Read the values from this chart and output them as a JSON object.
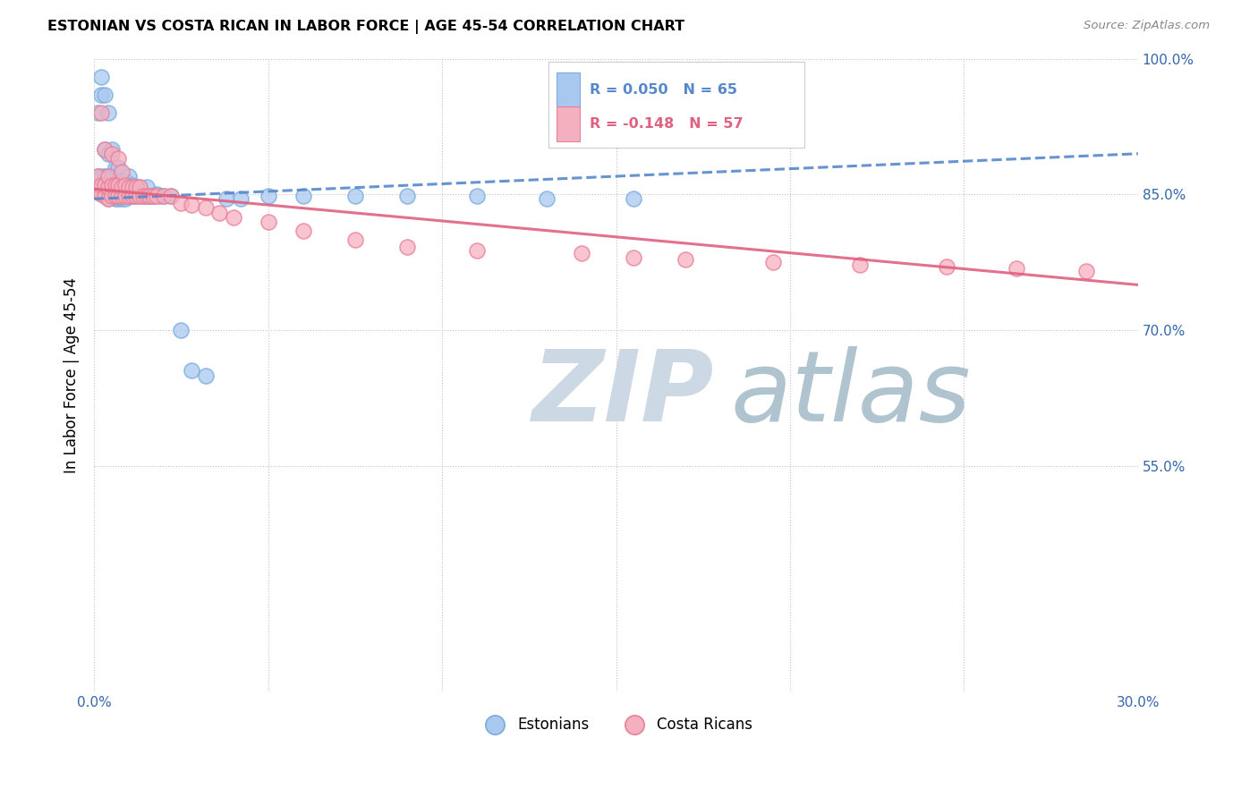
{
  "title": "ESTONIAN VS COSTA RICAN IN LABOR FORCE | AGE 45-54 CORRELATION CHART",
  "source": "Source: ZipAtlas.com",
  "ylabel": "In Labor Force | Age 45-54",
  "xmin": 0.0,
  "xmax": 0.3,
  "ymin": 0.3,
  "ymax": 1.0,
  "xticks": [
    0.0,
    0.05,
    0.1,
    0.15,
    0.2,
    0.25,
    0.3
  ],
  "xtick_labels": [
    "0.0%",
    "",
    "",
    "",
    "",
    "",
    "30.0%"
  ],
  "yticks": [
    0.3,
    0.55,
    0.7,
    0.85,
    1.0
  ],
  "ytick_labels_right": [
    "",
    "55.0%",
    "70.0%",
    "85.0%",
    "100.0%"
  ],
  "legend_r_estonian": "R = 0.050",
  "legend_n_estonian": "N = 65",
  "legend_r_costarican": "R = -0.148",
  "legend_n_costarican": "N = 57",
  "estonian_color": "#a8c8f0",
  "costarican_color": "#f5b0c0",
  "estonian_edge_color": "#7aacdc",
  "costarican_edge_color": "#e88099",
  "estonian_line_color": "#5588cc",
  "costarican_line_color": "#e06080",
  "watermark_zip": "ZIP",
  "watermark_atlas": "atlas",
  "watermark_color_zip": "#d0dce8",
  "watermark_color_atlas": "#b8ccd8",
  "background_color": "#ffffff",
  "estonian_x": [
    0.001,
    0.001,
    0.001,
    0.002,
    0.002,
    0.002,
    0.002,
    0.003,
    0.003,
    0.003,
    0.003,
    0.003,
    0.004,
    0.004,
    0.004,
    0.004,
    0.004,
    0.005,
    0.005,
    0.005,
    0.005,
    0.006,
    0.006,
    0.006,
    0.006,
    0.007,
    0.007,
    0.007,
    0.007,
    0.008,
    0.008,
    0.008,
    0.009,
    0.009,
    0.009,
    0.01,
    0.01,
    0.01,
    0.011,
    0.011,
    0.012,
    0.012,
    0.013,
    0.013,
    0.014,
    0.015,
    0.015,
    0.016,
    0.017,
    0.018,
    0.019,
    0.02,
    0.022,
    0.025,
    0.028,
    0.032,
    0.038,
    0.042,
    0.05,
    0.06,
    0.075,
    0.09,
    0.11,
    0.13,
    0.155
  ],
  "estonian_y": [
    0.86,
    0.87,
    0.94,
    0.855,
    0.87,
    0.96,
    0.98,
    0.855,
    0.86,
    0.87,
    0.9,
    0.96,
    0.845,
    0.855,
    0.87,
    0.895,
    0.94,
    0.85,
    0.86,
    0.87,
    0.9,
    0.845,
    0.855,
    0.86,
    0.88,
    0.845,
    0.855,
    0.865,
    0.88,
    0.845,
    0.855,
    0.865,
    0.845,
    0.855,
    0.865,
    0.848,
    0.855,
    0.87,
    0.848,
    0.86,
    0.848,
    0.858,
    0.848,
    0.858,
    0.848,
    0.848,
    0.858,
    0.848,
    0.848,
    0.85,
    0.848,
    0.848,
    0.848,
    0.7,
    0.655,
    0.65,
    0.845,
    0.845,
    0.848,
    0.848,
    0.848,
    0.848,
    0.848,
    0.845,
    0.845
  ],
  "costarican_x": [
    0.001,
    0.001,
    0.002,
    0.002,
    0.002,
    0.003,
    0.003,
    0.003,
    0.004,
    0.004,
    0.004,
    0.005,
    0.005,
    0.005,
    0.006,
    0.006,
    0.007,
    0.007,
    0.007,
    0.008,
    0.008,
    0.008,
    0.009,
    0.009,
    0.01,
    0.01,
    0.011,
    0.011,
    0.012,
    0.012,
    0.013,
    0.013,
    0.014,
    0.015,
    0.016,
    0.017,
    0.018,
    0.02,
    0.022,
    0.025,
    0.028,
    0.032,
    0.036,
    0.04,
    0.05,
    0.06,
    0.075,
    0.09,
    0.11,
    0.14,
    0.155,
    0.17,
    0.195,
    0.22,
    0.245,
    0.265,
    0.285
  ],
  "costarican_y": [
    0.855,
    0.87,
    0.85,
    0.86,
    0.94,
    0.848,
    0.86,
    0.9,
    0.845,
    0.858,
    0.87,
    0.848,
    0.86,
    0.895,
    0.848,
    0.86,
    0.848,
    0.86,
    0.89,
    0.848,
    0.858,
    0.875,
    0.848,
    0.86,
    0.848,
    0.858,
    0.848,
    0.858,
    0.848,
    0.858,
    0.848,
    0.858,
    0.848,
    0.848,
    0.848,
    0.848,
    0.848,
    0.848,
    0.848,
    0.84,
    0.838,
    0.835,
    0.83,
    0.825,
    0.82,
    0.81,
    0.8,
    0.792,
    0.788,
    0.785,
    0.78,
    0.778,
    0.775,
    0.772,
    0.77,
    0.768,
    0.765
  ],
  "est_line_x0": 0.0,
  "est_line_x1": 0.3,
  "est_line_y0": 0.845,
  "est_line_y1": 0.895,
  "cr_line_x0": 0.0,
  "cr_line_x1": 0.3,
  "cr_line_y0": 0.856,
  "cr_line_y1": 0.75
}
